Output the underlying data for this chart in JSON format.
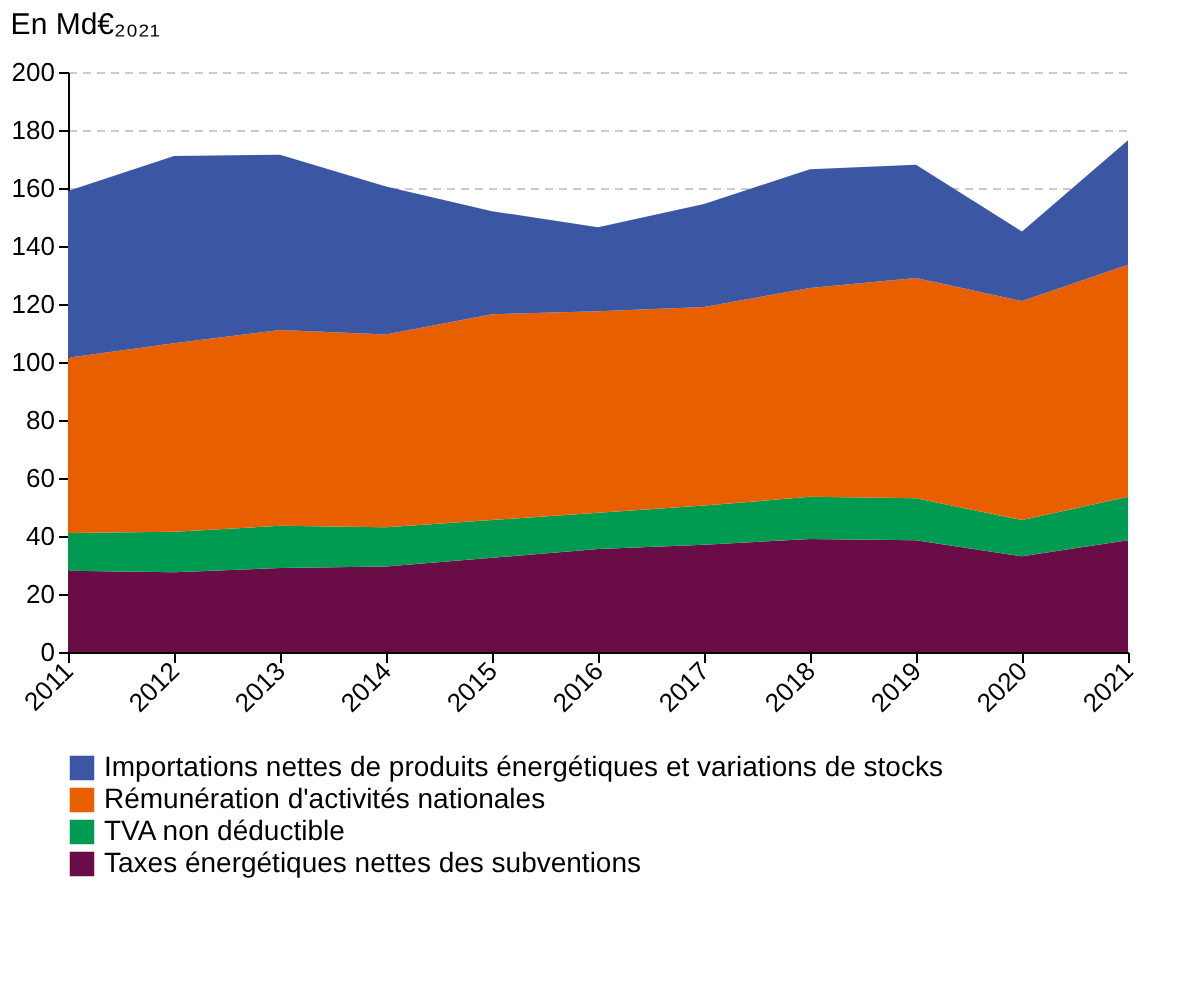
{
  "chart_data": {
    "type": "area",
    "subtitle": "En Md€₂₀₂₁",
    "stacked": true,
    "x": [
      2011,
      2012,
      2013,
      2014,
      2015,
      2016,
      2017,
      2018,
      2019,
      2020,
      2021
    ],
    "xlim": [
      2011,
      2021
    ],
    "xticks": [
      2011,
      2012,
      2013,
      2014,
      2015,
      2016,
      2017,
      2018,
      2019,
      2020,
      2021
    ],
    "ylim": [
      0,
      200
    ],
    "yticks": [
      0,
      20,
      40,
      60,
      80,
      100,
      120,
      140,
      160,
      180,
      200
    ],
    "grid": "y",
    "legend": "bottom",
    "series": [
      {
        "name": "Taxes énergétiques nettes des subventions",
        "color": "#6a0d47",
        "values": [
          28,
          27.5,
          29,
          29.5,
          32.5,
          35.5,
          37,
          39,
          38.5,
          33,
          38.5
        ]
      },
      {
        "name": "TVA non déductible",
        "color": "#009a50",
        "values": [
          13,
          14,
          14.5,
          13.5,
          13,
          12.5,
          13.5,
          14.5,
          14.5,
          12.5,
          15
        ]
      },
      {
        "name": "Rémunération d'activités nationales",
        "color": "#e85f00",
        "values": [
          60.5,
          65,
          67.5,
          66.5,
          71,
          69.5,
          68.5,
          72,
          76,
          75.5,
          80
        ]
      },
      {
        "name": "Importations nettes de produits énergétiques et variations de stocks",
        "color": "#3b56a3",
        "values": [
          57.5,
          64.5,
          60.5,
          51,
          35.5,
          29,
          35.5,
          41,
          39,
          24,
          43
        ]
      }
    ]
  }
}
